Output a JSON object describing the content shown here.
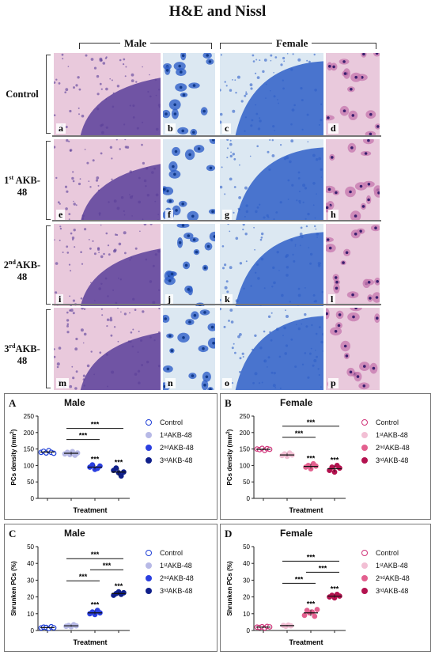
{
  "figure": {
    "title": "H&E and Nissl",
    "sex_labels": {
      "male": "Male",
      "female": "Female"
    },
    "row_labels": [
      {
        "num": "",
        "sup": "",
        "text": "Control"
      },
      {
        "num": "1",
        "sup": "st",
        "text": " AKB-48"
      },
      {
        "num": "2",
        "sup": "nd",
        "text": "AKB-48"
      },
      {
        "num": "3",
        "sup": "rd",
        "text": "AKB-48"
      }
    ],
    "panel_letters": [
      "a",
      "b",
      "c",
      "d",
      "e",
      "f",
      "g",
      "h",
      "i",
      "j",
      "k",
      "l",
      "m",
      "n",
      "o",
      "p"
    ],
    "stain_colors": {
      "he_background": "#e9c9dc",
      "he_nuclei": "#5a3f9a",
      "nissl_background": "#dce8f2",
      "nissl_stain": "#2f5fc8"
    }
  },
  "charts": [
    {
      "letter": "A",
      "title": "Male",
      "ylabel": "PCs density (mm",
      "ylabel_sup": "2",
      "ylabel_end": ")",
      "xlabel": "Treatment",
      "legend": [
        {
          "pre": "",
          "sup": "",
          "post": "Control"
        },
        {
          "pre": "1",
          "sup": "st",
          "post": " AKB-48"
        },
        {
          "pre": "2",
          "sup": "nd",
          "post": " AKB-48"
        },
        {
          "pre": "3",
          "sup": "rd",
          "post": " AKB-48"
        }
      ],
      "sig_marker": "***"
    },
    {
      "letter": "B",
      "title": "Female",
      "ylabel": "PCs density (mm",
      "ylabel_sup": "2",
      "ylabel_end": ")",
      "xlabel": "Treatment",
      "legend": [
        {
          "pre": "",
          "sup": "",
          "post": "Control"
        },
        {
          "pre": "1",
          "sup": "st",
          "post": " AKB-48"
        },
        {
          "pre": "2",
          "sup": "nd",
          "post": " AKB-48"
        },
        {
          "pre": "3",
          "sup": "rd",
          "post": " AKB-48"
        }
      ],
      "sig_marker": "***"
    },
    {
      "letter": "C",
      "title": "Male",
      "ylabel": "Shrunken PCs (%)",
      "ylabel_sup": "",
      "ylabel_end": "",
      "xlabel": "Treatment",
      "legend": [
        {
          "pre": "",
          "sup": "",
          "post": "Control"
        },
        {
          "pre": "1",
          "sup": "st",
          "post": " AKB-48"
        },
        {
          "pre": "2",
          "sup": "nd",
          "post": " AKB-48"
        },
        {
          "pre": "3",
          "sup": "rd",
          "post": " AKB-48"
        }
      ],
      "sig_marker": "***"
    },
    {
      "letter": "D",
      "title": "Female",
      "ylabel": "Shrunken PCs (%)",
      "ylabel_sup": "",
      "ylabel_end": "",
      "xlabel": "Treatment",
      "legend": [
        {
          "pre": "",
          "sup": "",
          "post": "Control"
        },
        {
          "pre": "1",
          "sup": "st",
          "post": " AKB-48"
        },
        {
          "pre": "2",
          "sup": "nd",
          "post": " AKB-48"
        },
        {
          "pre": "3",
          "sup": "rd",
          "post": " AKB-48"
        }
      ],
      "sig_marker": "***"
    }
  ],
  "chart_data": [
    {
      "type": "scatter",
      "title": "Male",
      "ylabel": "PCs density (mm2)",
      "xlabel": "Treatment",
      "ylim": [
        0,
        250
      ],
      "yticks": [
        0,
        50,
        100,
        150,
        200,
        250
      ],
      "colors": [
        "#1f3fd6",
        "#b7b9e6",
        "#2b3fe0",
        "#0f1f8a"
      ],
      "hollow": [
        true,
        false,
        false,
        false
      ],
      "series": [
        {
          "name": "Control",
          "values": [
            140,
            143,
            138,
            145,
            140,
            137
          ],
          "mean": 141
        },
        {
          "name": "1st AKB-48",
          "values": [
            135,
            140,
            133,
            142,
            131,
            138
          ],
          "mean": 137
        },
        {
          "name": "2nd AKB-48",
          "values": [
            95,
            102,
            88,
            91,
            98
          ],
          "mean": 95
        },
        {
          "name": "3rd AKB-48",
          "values": [
            85,
            92,
            78,
            68,
            80
          ],
          "mean": 80
        }
      ],
      "star_over": [
        2,
        3
      ],
      "brackets": [
        [
          1,
          2
        ],
        [
          1,
          3
        ]
      ]
    },
    {
      "type": "scatter",
      "title": "Female",
      "ylabel": "PCs density (mm2)",
      "xlabel": "Treatment",
      "ylim": [
        0,
        250
      ],
      "yticks": [
        0,
        50,
        100,
        150,
        200,
        250
      ],
      "colors": [
        "#d0347a",
        "#f2bfd4",
        "#e3608f",
        "#b3124f"
      ],
      "hollow": [
        true,
        false,
        false,
        false
      ],
      "series": [
        {
          "name": "Control",
          "values": [
            150,
            148,
            152,
            146,
            151,
            149
          ],
          "mean": 149
        },
        {
          "name": "1st AKB-48",
          "values": [
            130,
            135,
            128,
            138,
            132
          ],
          "mean": 132
        },
        {
          "name": "2nd AKB-48",
          "values": [
            95,
            100,
            90,
            105,
            98
          ],
          "mean": 97
        },
        {
          "name": "3rd AKB-48",
          "values": [
            85,
            95,
            80,
            100,
            92
          ],
          "mean": 90
        }
      ],
      "star_over": [
        2,
        3
      ],
      "brackets": [
        [
          1,
          2
        ],
        [
          1,
          3
        ]
      ]
    },
    {
      "type": "scatter",
      "title": "Male",
      "ylabel": "Shrunken PCs (%)",
      "xlabel": "Treatment",
      "ylim": [
        0,
        50
      ],
      "yticks": [
        0,
        10,
        20,
        30,
        40,
        50
      ],
      "colors": [
        "#1f3fd6",
        "#b7b9e6",
        "#2b3fe0",
        "#0f1f8a"
      ],
      "hollow": [
        true,
        false,
        false,
        false
      ],
      "series": [
        {
          "name": "Control",
          "values": [
            1.5,
            2,
            1.8,
            1.2,
            2.2,
            1.6
          ],
          "mean": 1.7
        },
        {
          "name": "1st AKB-48",
          "values": [
            2.5,
            3,
            2.2,
            3.5,
            2.8
          ],
          "mean": 2.8
        },
        {
          "name": "2nd AKB-48",
          "values": [
            10,
            11,
            9.5,
            12,
            10.5
          ],
          "mean": 10.5
        },
        {
          "name": "3rd AKB-48",
          "values": [
            21,
            22,
            23,
            21.5,
            22.5
          ],
          "mean": 22
        }
      ],
      "star_over": [
        2,
        3
      ],
      "brackets": [
        [
          1,
          2
        ],
        [
          2,
          3
        ],
        [
          1,
          3
        ]
      ]
    },
    {
      "type": "scatter",
      "title": "Female",
      "ylabel": "Shrunken PCs (%)",
      "xlabel": "Treatment",
      "ylim": [
        0,
        50
      ],
      "yticks": [
        0,
        10,
        20,
        30,
        40,
        50
      ],
      "colors": [
        "#d0347a",
        "#f2bfd4",
        "#e3608f",
        "#b3124f"
      ],
      "hollow": [
        true,
        false,
        false,
        false
      ],
      "series": [
        {
          "name": "Control",
          "values": [
            2,
            1.8,
            2.2,
            1.5,
            2.4,
            2.1
          ],
          "mean": 2
        },
        {
          "name": "1st AKB-48",
          "values": [
            3,
            2.5,
            3.2,
            2.8
          ],
          "mean": 2.9
        },
        {
          "name": "2nd AKB-48",
          "values": [
            9,
            12,
            10.5,
            11,
            8.5,
            12.5
          ],
          "mean": 10.5
        },
        {
          "name": "3rd AKB-48",
          "values": [
            20,
            21,
            19.5,
            21.5,
            20.5
          ],
          "mean": 20.5
        }
      ],
      "star_over": [
        2,
        3
      ],
      "brackets": [
        [
          1,
          2
        ],
        [
          2,
          3
        ],
        [
          1,
          3
        ]
      ]
    }
  ]
}
